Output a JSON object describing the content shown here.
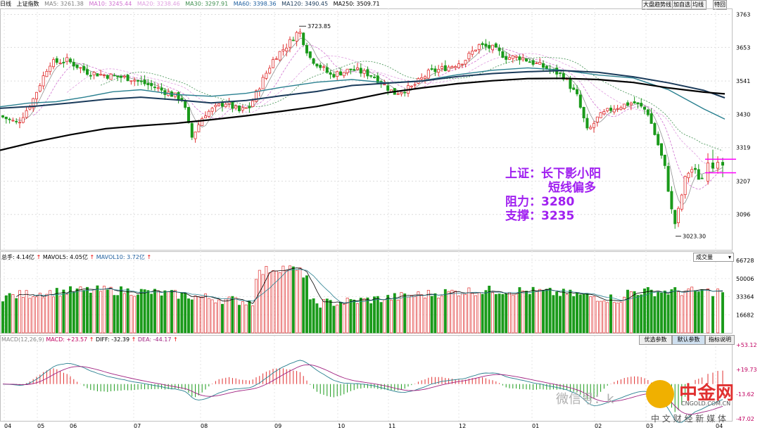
{
  "top_bar": {
    "period": "日线",
    "index_name": "上证指数",
    "ma_labels": [
      {
        "text": "MA5: 3261.38",
        "color": "#808080"
      },
      {
        "text": "MA10: 3245.44",
        "color": "#d070d0"
      },
      {
        "text": "MA20: 3238.46",
        "color": "#e0a0e0"
      },
      {
        "text": "MA30: 3297.91",
        "color": "#409050"
      },
      {
        "text": "MA60: 3398.36",
        "color": "#2060a0"
      },
      {
        "text": "MA120: 3490.45",
        "color": "#1a3a5a"
      },
      {
        "text": "MA250: 3509.71",
        "color": "#000000"
      }
    ],
    "toolbar": [
      "大盘趋势线",
      "加自选",
      "均线",
      "特回"
    ]
  },
  "annotation": {
    "line1": "上证：长下影小阳",
    "line2": "短线偏多",
    "line3": "阻力：3280",
    "line4": "支撑：3235"
  },
  "volume_bar": {
    "vol_label": "总手: 4.14亿",
    "mavol5": "MAVOL5: 4.05亿",
    "mavol10": "MAVOL10: 3.72亿",
    "selector": "成交量"
  },
  "macd_bar": {
    "name": "MACD(12,26,9)",
    "macd": "MACD: +23.57",
    "diff": "DIFF: -32.39",
    "dea": "DEA: -44.17",
    "buttons": [
      "优选参数",
      "默认参数",
      "指标说明"
    ]
  },
  "watermark": {
    "wechat": "微信号：k",
    "brand": "中金网",
    "site": "CNGOLD.COM.CN",
    "tagline": "中 文 财 经 新 媒 体"
  },
  "chart_data": {
    "type": "candlestick",
    "price_axis_ticks": [
      "3763",
      "3653",
      "3541",
      "3430",
      "3319",
      "3207",
      "3096"
    ],
    "price_range": [
      2985,
      3783
    ],
    "high_marker": "3723.85",
    "low_marker": "3023.30",
    "volume_axis_ticks": [
      "66728",
      "50006",
      "33364",
      "16682"
    ],
    "macd_axis_ticks": [
      "+53.12",
      "+19.73",
      "-13.62",
      "-47.02"
    ],
    "x_ticks": [
      "04",
      "05",
      "06",
      "07",
      "08",
      "09",
      "10",
      "11",
      "12",
      "01",
      "02",
      "03",
      "04"
    ],
    "ma250": [
      [
        0,
        3310
      ],
      [
        50,
        3338
      ],
      [
        100,
        3362
      ],
      [
        150,
        3382
      ],
      [
        200,
        3392
      ],
      [
        250,
        3400
      ],
      [
        300,
        3412
      ],
      [
        350,
        3425
      ],
      [
        400,
        3440
      ],
      [
        450,
        3456
      ],
      [
        500,
        3478
      ],
      [
        550,
        3502
      ],
      [
        600,
        3518
      ],
      [
        650,
        3532
      ],
      [
        700,
        3542
      ],
      [
        750,
        3549
      ],
      [
        800,
        3550
      ],
      [
        850,
        3546
      ],
      [
        900,
        3536
      ],
      [
        950,
        3518
      ],
      [
        1000,
        3504
      ],
      [
        1030,
        3498
      ]
    ],
    "ma120": [
      [
        0,
        3450
      ],
      [
        50,
        3457
      ],
      [
        100,
        3468
      ],
      [
        150,
        3480
      ],
      [
        200,
        3487
      ],
      [
        250,
        3478
      ],
      [
        300,
        3468
      ],
      [
        350,
        3476
      ],
      [
        400,
        3492
      ],
      [
        450,
        3506
      ],
      [
        500,
        3526
      ],
      [
        550,
        3534
      ],
      [
        600,
        3541
      ],
      [
        650,
        3556
      ],
      [
        700,
        3566
      ],
      [
        750,
        3572
      ],
      [
        800,
        3576
      ],
      [
        850,
        3570
      ],
      [
        900,
        3555
      ],
      [
        950,
        3535
      ],
      [
        1000,
        3510
      ],
      [
        1030,
        3485
      ]
    ],
    "ma60": [
      [
        0,
        3455
      ],
      [
        40,
        3467
      ],
      [
        80,
        3472
      ],
      [
        120,
        3487
      ],
      [
        160,
        3505
      ],
      [
        200,
        3512
      ],
      [
        250,
        3496
      ],
      [
        300,
        3490
      ],
      [
        350,
        3500
      ],
      [
        400,
        3520
      ],
      [
        450,
        3537
      ],
      [
        500,
        3546
      ],
      [
        550,
        3535
      ],
      [
        600,
        3542
      ],
      [
        650,
        3562
      ],
      [
        700,
        3577
      ],
      [
        750,
        3585
      ],
      [
        800,
        3577
      ],
      [
        850,
        3561
      ],
      [
        900,
        3551
      ],
      [
        950,
        3512
      ],
      [
        1000,
        3448
      ],
      [
        1030,
        3414
      ]
    ],
    "last_candles": [
      {
        "x": 1006,
        "o": 3207,
        "h": 3300,
        "l": 3195,
        "c": 3268
      },
      {
        "x": 1013,
        "o": 3268,
        "h": 3312,
        "l": 3238,
        "c": 3250
      },
      {
        "x": 1020,
        "o": 3250,
        "h": 3290,
        "l": 3233,
        "c": 3270
      },
      {
        "x": 1027,
        "o": 3270,
        "h": 3285,
        "l": 3220,
        "c": 3260
      }
    ],
    "resistance": 3280,
    "support": 3235
  }
}
